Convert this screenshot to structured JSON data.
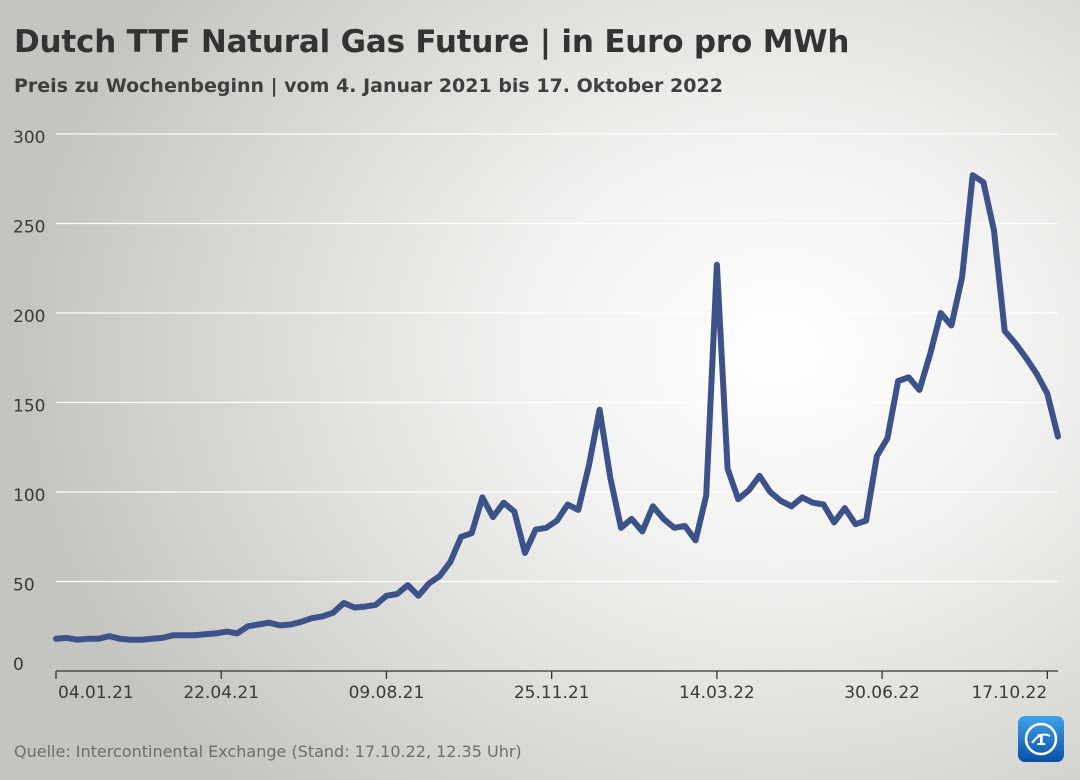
{
  "header": {
    "title": "Dutch TTF Natural Gas Future | in Euro pro MWh",
    "subtitle": "Preis zu Wochenbeginn | vom 4. Januar 2021 bis 17. Oktober 2022"
  },
  "footer": {
    "source": "Quelle: Intercontinental Exchange (Stand: 17.10.22, 12.35 Uhr)",
    "logo_icon": "tagesschau-logo-icon"
  },
  "colors": {
    "line": "#3d5289",
    "grid": "#ffffff",
    "axis": "#333333",
    "text": "#3a3a3a"
  },
  "chart_data": {
    "type": "line",
    "title": "Dutch TTF Natural Gas Future | in Euro pro MWh",
    "subtitle": "Preis zu Wochenbeginn | vom 4. Januar 2021 bis 17. Oktober 2022",
    "xlabel": "",
    "ylabel": "",
    "ylim": [
      0,
      300
    ],
    "y_ticks": [
      0,
      50,
      100,
      150,
      200,
      250,
      300
    ],
    "x_tick_labels": [
      "04.01.21",
      "22.04.21",
      "09.08.21",
      "25.11.21",
      "14.03.22",
      "30.06.22",
      "17.10.22"
    ],
    "x_tick_weeks": [
      0,
      15.5,
      31,
      46.5,
      62,
      77.5,
      93
    ],
    "grid": true,
    "series": [
      {
        "name": "Dutch TTF Natural Gas Future",
        "values": [
          18,
          18.5,
          17.5,
          18,
          18,
          19.5,
          18,
          17.5,
          17.5,
          18,
          18.5,
          20,
          20,
          20,
          20.5,
          21,
          22,
          21,
          25,
          26,
          27,
          25.5,
          26,
          27.5,
          29.5,
          30.5,
          32.5,
          38,
          35.5,
          36,
          37,
          42,
          43,
          48,
          42,
          49,
          53,
          61,
          75,
          77,
          97,
          86,
          94,
          89,
          66,
          79,
          80,
          84,
          93,
          90,
          115,
          146,
          108,
          80,
          85,
          78,
          92,
          85,
          80,
          81,
          73,
          98,
          227,
          113,
          96,
          101,
          109,
          100,
          95,
          92,
          97,
          94,
          93,
          83,
          91,
          82,
          84,
          120,
          130,
          162,
          164,
          157,
          177,
          200,
          193,
          220,
          277,
          273,
          246,
          190,
          183,
          175,
          166,
          155,
          131
        ]
      }
    ]
  }
}
